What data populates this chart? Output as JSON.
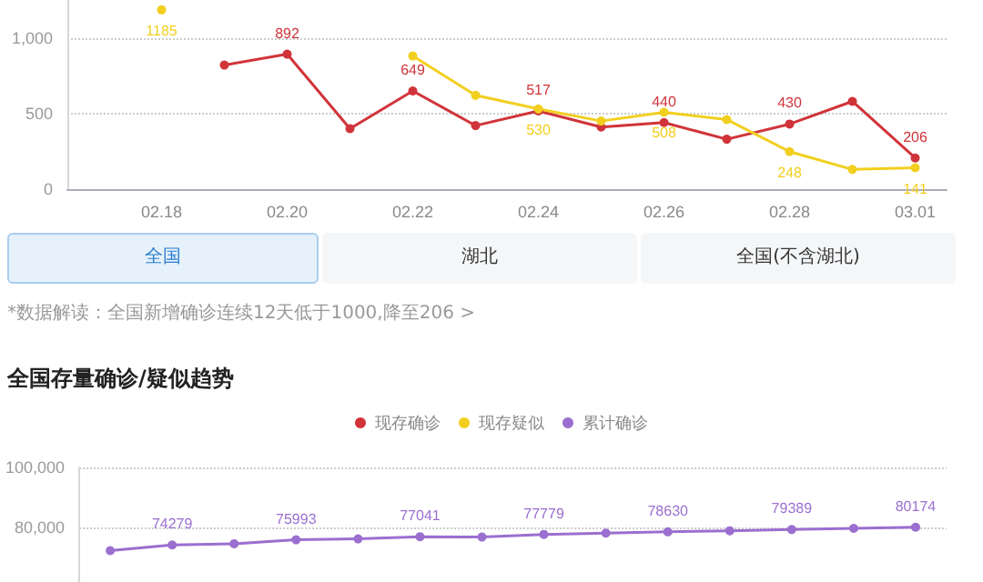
{
  "chart_data": [
    {
      "type": "line",
      "categories": [
        null,
        "02.18",
        null,
        "02.20",
        null,
        "02.22",
        null,
        "02.24",
        null,
        "02.26",
        null,
        "02.28",
        null,
        "03.01"
      ],
      "series": [
        {
          "color": "#d0343a",
          "values": [
            null,
            null,
            820,
            892,
            400,
            649,
            420,
            517,
            410,
            440,
            330,
            430,
            580,
            206
          ],
          "value_labels": [
            null,
            null,
            null,
            "892",
            null,
            "649",
            null,
            "517",
            null,
            "440",
            null,
            "430",
            null,
            "206"
          ]
        },
        {
          "color": "#f2cf1f",
          "values": [
            null,
            1185,
            null,
            null,
            null,
            880,
            620,
            530,
            450,
            508,
            460,
            248,
            130,
            141
          ],
          "value_labels": [
            null,
            "1185",
            null,
            null,
            null,
            null,
            null,
            "530",
            null,
            "508",
            null,
            "248",
            null,
            "141"
          ]
        }
      ],
      "ylim": [
        0,
        1250
      ],
      "yticks": [
        0,
        500,
        {
          "value": 1000,
          "label": "1,000"
        }
      ],
      "grid": "y",
      "marker": "circle",
      "annotations": [
        "全国",
        "湖北",
        "全国(不含湖北)",
        "*数据解读：全国新增确诊连续12天低于1000,降至206 >"
      ]
    },
    {
      "type": "line",
      "title": "全国存量确诊/疑似趋势",
      "categories": [
        null,
        null,
        null,
        null,
        null,
        null,
        null,
        null,
        null,
        null,
        null,
        null,
        null,
        null
      ],
      "series": [
        {
          "name": "现存确诊",
          "color": "#d0343a",
          "values": [
            null,
            null,
            null,
            null,
            null,
            null,
            null,
            null,
            null,
            null,
            null,
            null,
            null,
            null
          ]
        },
        {
          "name": "现存疑似",
          "color": "#f2cf1f",
          "values": [
            null,
            null,
            null,
            null,
            null,
            null,
            null,
            null,
            null,
            null,
            null,
            null,
            null,
            null
          ]
        },
        {
          "name": "累计确诊",
          "color": "#9b6fd0",
          "values": [
            72400,
            74279,
            74700,
            75993,
            76300,
            77041,
            76900,
            77779,
            78200,
            78630,
            79000,
            79389,
            79800,
            80174
          ],
          "value_labels": [
            null,
            "74279",
            null,
            "75993",
            null,
            "77041",
            null,
            "77779",
            null,
            "78630",
            null,
            "79389",
            null,
            "80174"
          ]
        }
      ],
      "ylim": [
        62000,
        100000
      ],
      "yticks": [
        {
          "value": 80000,
          "label": "80,000"
        },
        {
          "value": 100000,
          "label": "100,000"
        }
      ],
      "grid": "y",
      "marker": "circle",
      "legend": "top",
      "tick_labels": "y"
    }
  ]
}
